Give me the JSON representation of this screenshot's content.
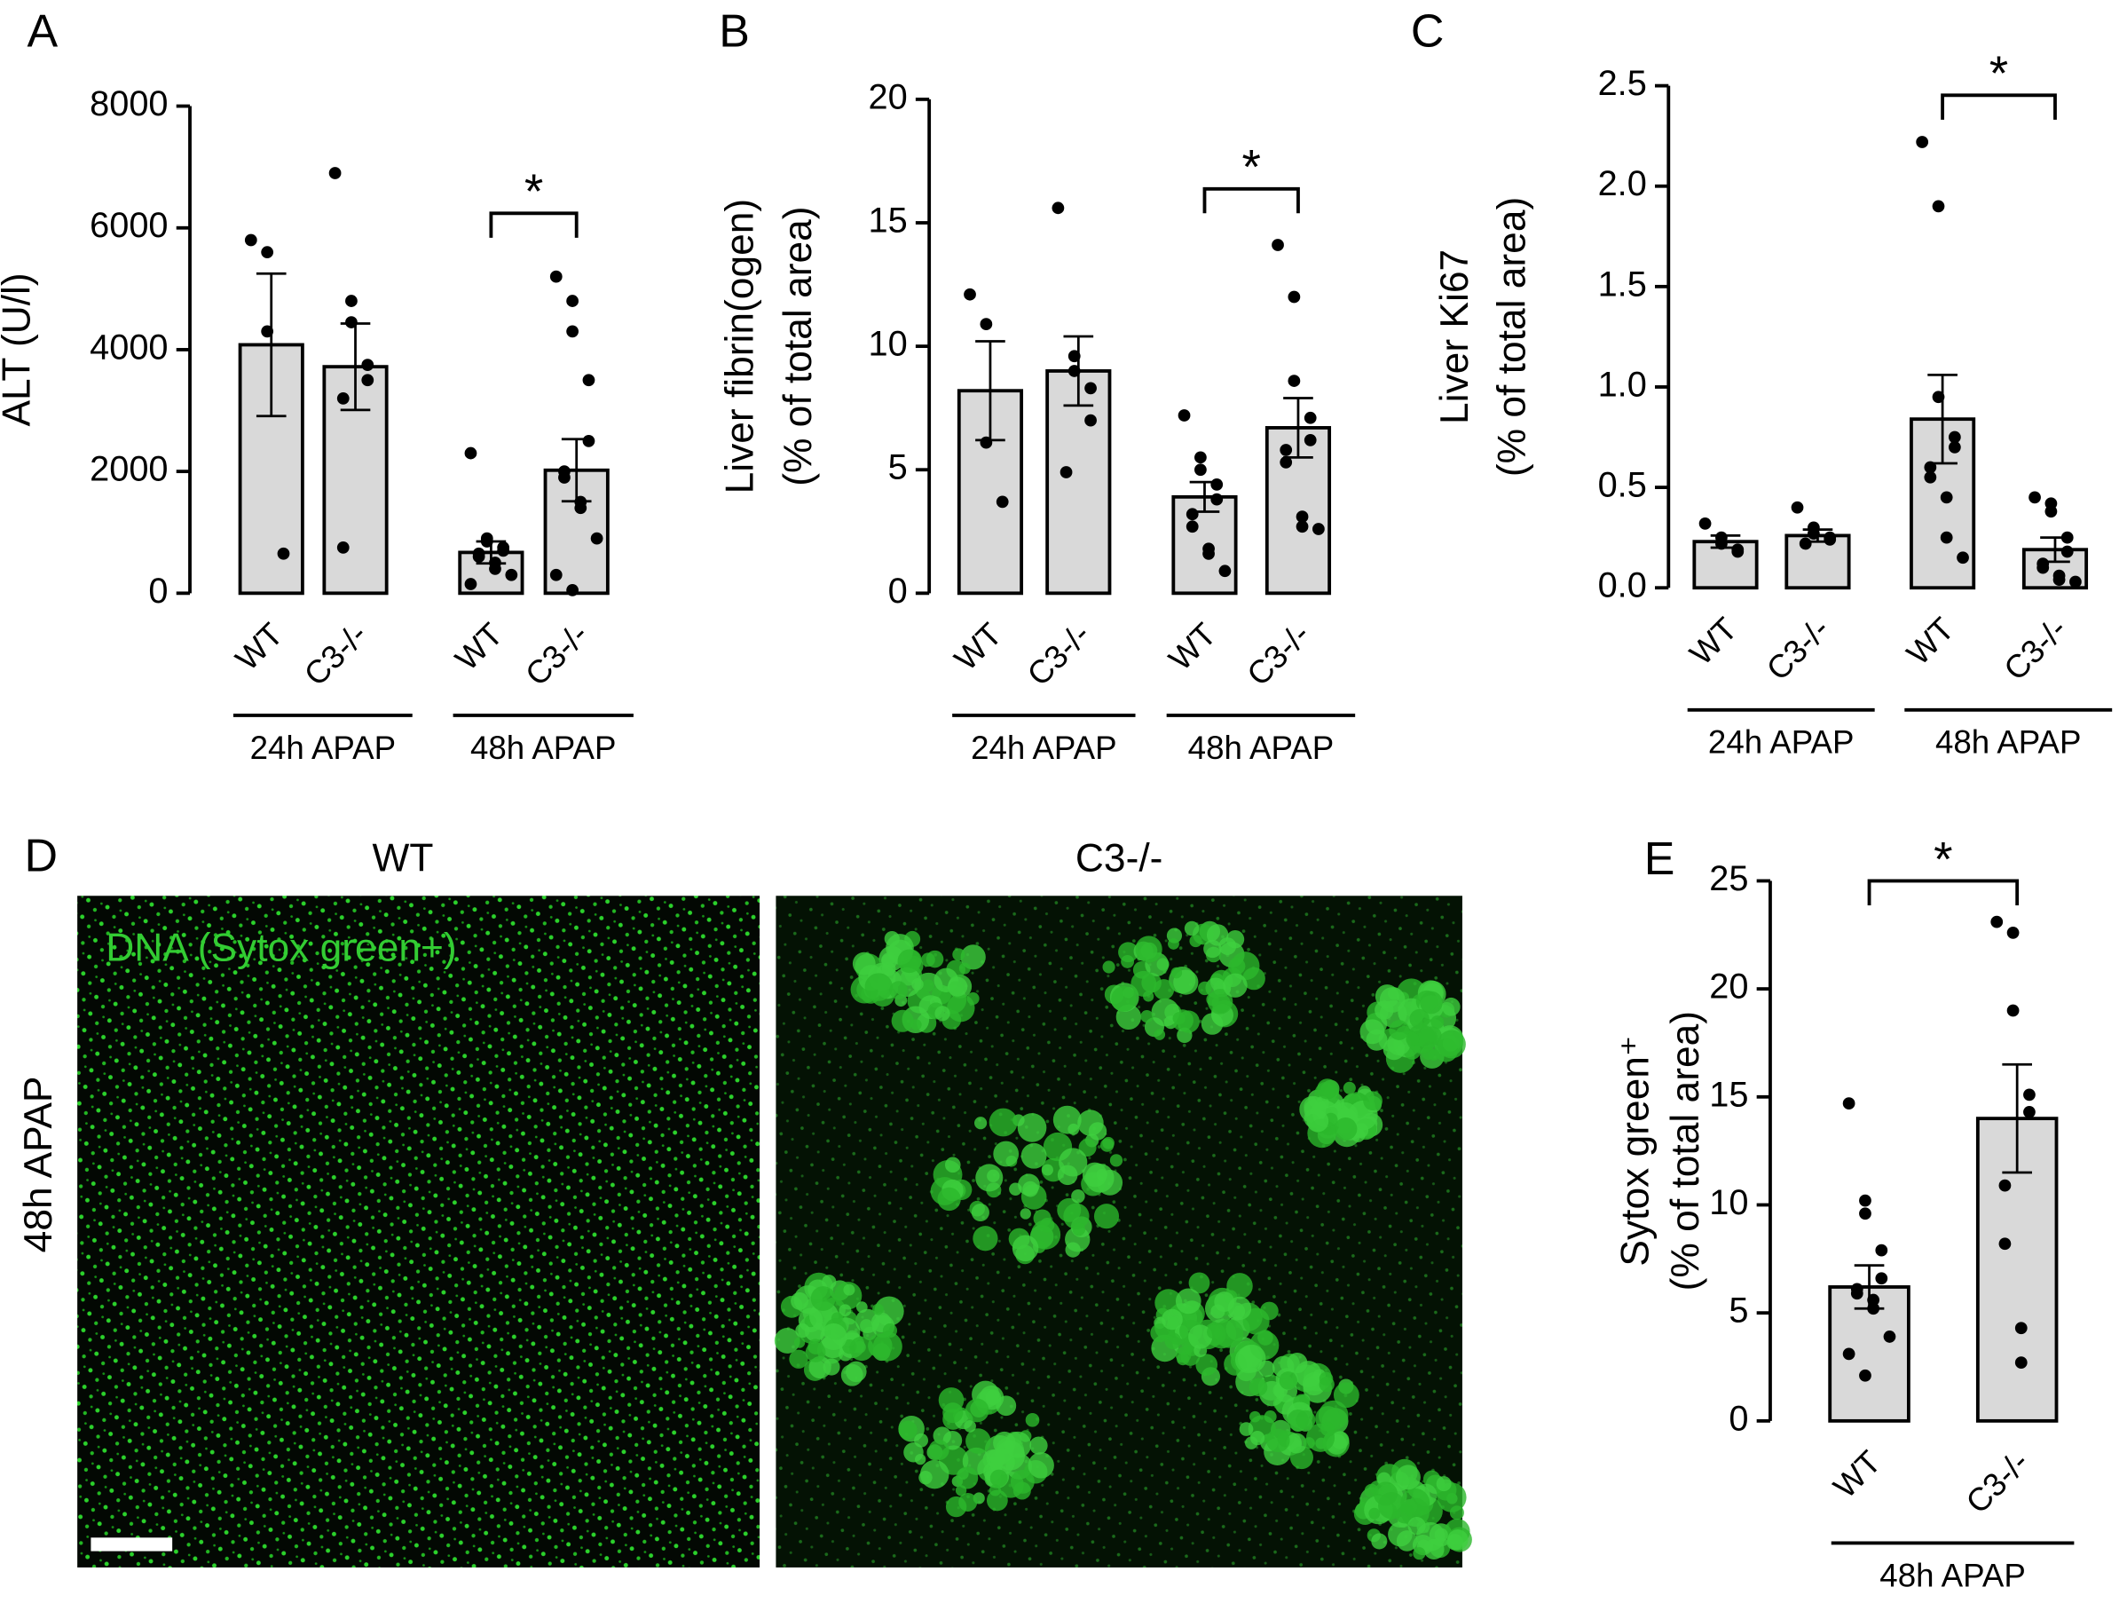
{
  "chart_data": [
    {
      "type": "bar",
      "panel": "A",
      "ylabel": [
        "ALT (U/l)"
      ],
      "categories": [
        "WT",
        "C3-/-",
        "WT",
        "C3-/-"
      ],
      "groups": [
        "24h APAP",
        "48h APAP"
      ],
      "values": [
        4080,
        3720,
        670,
        2020
      ],
      "errors": [
        1170,
        710,
        180,
        510
      ],
      "points": [
        [
          5800,
          5600,
          4300,
          650
        ],
        [
          6900,
          4800,
          4450,
          3750,
          3500,
          3200,
          750
        ],
        [
          2300,
          900,
          850,
          750,
          700,
          650,
          600,
          500,
          400,
          300,
          150
        ],
        [
          5200,
          4800,
          4300,
          3500,
          2500,
          2000,
          1900,
          1500,
          1400,
          900,
          300,
          50
        ]
      ],
      "color": "#d9d9d9",
      "point_color": "#000000",
      "annotation": "*",
      "ylim": [
        0,
        8000
      ],
      "yticks": [
        0,
        2000,
        4000,
        6000,
        8000
      ]
    },
    {
      "type": "bar",
      "panel": "B",
      "ylabel": [
        "Liver fibrin(ogen)",
        "(% of total area)"
      ],
      "categories": [
        "WT",
        "C3-/-",
        "WT",
        "C3-/-"
      ],
      "groups": [
        "24h APAP",
        "48h APAP"
      ],
      "values": [
        8.2,
        9.0,
        3.9,
        6.7
      ],
      "errors": [
        2.0,
        1.4,
        0.6,
        1.2
      ],
      "points": [
        [
          12.1,
          10.9,
          6.1,
          3.7
        ],
        [
          15.6,
          9.6,
          9.0,
          8.3,
          7.0,
          4.9
        ],
        [
          7.2,
          5.5,
          5.0,
          4.4,
          3.8,
          3.2,
          2.7,
          1.8,
          1.6,
          0.9
        ],
        [
          14.1,
          12.0,
          8.6,
          7.1,
          6.2,
          5.8,
          5.3,
          3.1,
          2.7,
          2.6
        ]
      ],
      "color": "#d9d9d9",
      "point_color": "#000000",
      "annotation": "*",
      "ylim": [
        0,
        20
      ],
      "yticks": [
        0,
        5,
        10,
        15,
        20
      ]
    },
    {
      "type": "bar",
      "panel": "C",
      "ylabel": [
        "Liver Ki67",
        "(% of total area)"
      ],
      "categories": [
        "WT",
        "C3-/-",
        "WT",
        "C3-/-"
      ],
      "groups": [
        "24h APAP",
        "48h APAP"
      ],
      "values": [
        0.23,
        0.26,
        0.84,
        0.19
      ],
      "errors": [
        0.03,
        0.03,
        0.22,
        0.06
      ],
      "points": [
        [
          0.32,
          0.25,
          0.22,
          0.19,
          0.18
        ],
        [
          0.4,
          0.3,
          0.27,
          0.25,
          0.24,
          0.22
        ],
        [
          2.22,
          1.9,
          0.95,
          0.75,
          0.7,
          0.6,
          0.55,
          0.45,
          0.25,
          0.15
        ],
        [
          0.45,
          0.42,
          0.38,
          0.25,
          0.18,
          0.12,
          0.1,
          0.06,
          0.04,
          0.03
        ]
      ],
      "color": "#d9d9d9",
      "point_color": "#000000",
      "annotation": "*",
      "ylim": [
        0,
        2.5
      ],
      "yticks": [
        {
          "value": 0,
          "label": "0.0"
        },
        0.5,
        {
          "value": 1,
          "label": "1.0"
        },
        1.5,
        {
          "value": 2,
          "label": "2.0"
        },
        2.5
      ]
    },
    {
      "type": "bar",
      "panel": "E",
      "ylabel": [
        "Sytox green⁺",
        "(% of total area)"
      ],
      "categories": [
        "WT",
        "C3-/-"
      ],
      "groups": [
        "48h APAP"
      ],
      "values": [
        6.2,
        14.0
      ],
      "errors": [
        1.0,
        2.5
      ],
      "points": [
        [
          14.7,
          10.2,
          9.6,
          7.9,
          6.6,
          6.1,
          5.9,
          5.6,
          5.2,
          3.9,
          3.1,
          2.1
        ],
        [
          23.1,
          22.6,
          19.0,
          15.1,
          14.3,
          10.9,
          8.2,
          4.3,
          2.7
        ]
      ],
      "color": "#d9d9d9",
      "point_color": "#000000",
      "annotation": "*",
      "ylim": [
        0,
        25
      ],
      "yticks": [
        0,
        5,
        10,
        15,
        20,
        25
      ]
    }
  ],
  "panel_d": {
    "label": "D",
    "columns": [
      "WT",
      "C3-/-"
    ],
    "row_label": "48h APAP",
    "stain": "DNA (Sytox green+)"
  }
}
